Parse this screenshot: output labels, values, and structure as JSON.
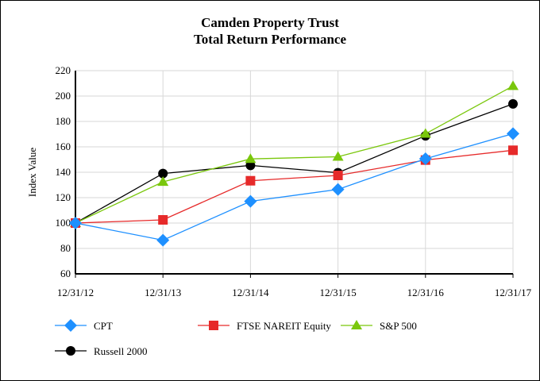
{
  "chart_data": {
    "type": "line",
    "title": "Camden Property Trust",
    "subtitle": "Total Return Performance",
    "xlabel": "",
    "ylabel": "Index Value",
    "ylim": [
      60,
      220
    ],
    "yticks": [
      60,
      80,
      100,
      120,
      140,
      160,
      180,
      200,
      220
    ],
    "categories": [
      "12/31/12",
      "12/31/13",
      "12/31/14",
      "12/31/15",
      "12/31/16",
      "12/31/17"
    ],
    "grid": true,
    "legend": "bottom",
    "series": [
      {
        "name": "CPT",
        "color": "#1e90ff",
        "marker": "diamond",
        "values": [
          100,
          86.5,
          117.1,
          126.5,
          150.6,
          170.4
        ]
      },
      {
        "name": "FTSE NAREIT Equity",
        "color": "#e62a2a",
        "marker": "square",
        "values": [
          100,
          102.5,
          133.3,
          137.5,
          149.6,
          157.3
        ]
      },
      {
        "name": "S&P 500",
        "color": "#7ac70c",
        "marker": "triangle",
        "values": [
          100,
          132.4,
          150.5,
          152.2,
          170.3,
          207.9
        ]
      },
      {
        "name": "Russell 2000",
        "color": "#000000",
        "marker": "circle",
        "values": [
          100,
          139,
          145.4,
          139.6,
          168.7,
          193.8
        ]
      }
    ]
  }
}
